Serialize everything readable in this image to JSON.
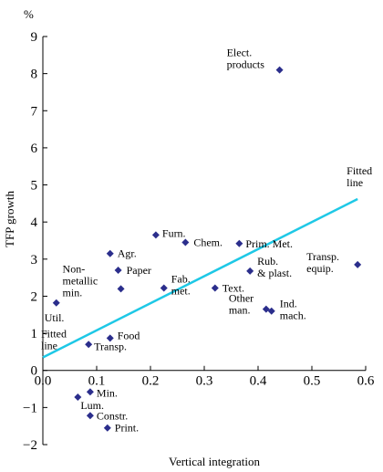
{
  "chart_data": {
    "type": "scatter",
    "unit_label": "%",
    "xlabel": "Vertical integration",
    "ylabel": "TFP growth",
    "xlim": [
      0.0,
      0.6
    ],
    "ylim": [
      -2,
      9
    ],
    "x_ticks": [
      "0.0",
      "0.1",
      "0.2",
      "0.3",
      "0.4",
      "0.5",
      "0.6"
    ],
    "y_ticks": [
      "−2",
      "−1",
      "0",
      "1",
      "2",
      "3",
      "4",
      "5",
      "6",
      "7",
      "8",
      "9"
    ],
    "marker_color": "#2b2e8c",
    "fit_line_color": "#1ec8e6",
    "points": [
      {
        "label": "Elect. products",
        "x": 0.44,
        "y": 8.1
      },
      {
        "label": "Furn.",
        "x": 0.21,
        "y": 3.65
      },
      {
        "label": "Chem.",
        "x": 0.265,
        "y": 3.45
      },
      {
        "label": "Prim. Met.",
        "x": 0.365,
        "y": 3.42
      },
      {
        "label": "Agr.",
        "x": 0.125,
        "y": 3.15
      },
      {
        "label": "Paper",
        "x": 0.14,
        "y": 2.7
      },
      {
        "label": "Rub. & plast.",
        "x": 0.385,
        "y": 2.68
      },
      {
        "label": "Transp. equip.",
        "x": 0.585,
        "y": 2.85
      },
      {
        "label": "Non-metallic min.",
        "x": 0.145,
        "y": 2.2
      },
      {
        "label": "Fab. met.",
        "x": 0.225,
        "y": 2.22
      },
      {
        "label": "Text.",
        "x": 0.32,
        "y": 2.22
      },
      {
        "label": "Other man.",
        "x": 0.415,
        "y": 1.65
      },
      {
        "label": "Ind. mach.",
        "x": 0.425,
        "y": 1.6
      },
      {
        "label": "Util.",
        "x": 0.025,
        "y": 1.82
      },
      {
        "label": "Food",
        "x": 0.125,
        "y": 0.87
      },
      {
        "label": "Transp.",
        "x": 0.085,
        "y": 0.7
      },
      {
        "label": "Lum.",
        "x": 0.065,
        "y": -0.72
      },
      {
        "label": "Min.",
        "x": 0.088,
        "y": -0.58
      },
      {
        "label": "Constr.",
        "x": 0.088,
        "y": -1.22
      },
      {
        "label": "Print.",
        "x": 0.12,
        "y": -1.55
      }
    ],
    "fitted_line": {
      "x": [
        0.0,
        0.585
      ],
      "y": [
        0.35,
        4.62
      ]
    },
    "annotations": [
      {
        "text": "Fitted line",
        "x": 0.585,
        "y": 4.62
      },
      {
        "text": "Fitted line",
        "x": 0.0,
        "y": 0.35
      }
    ]
  }
}
